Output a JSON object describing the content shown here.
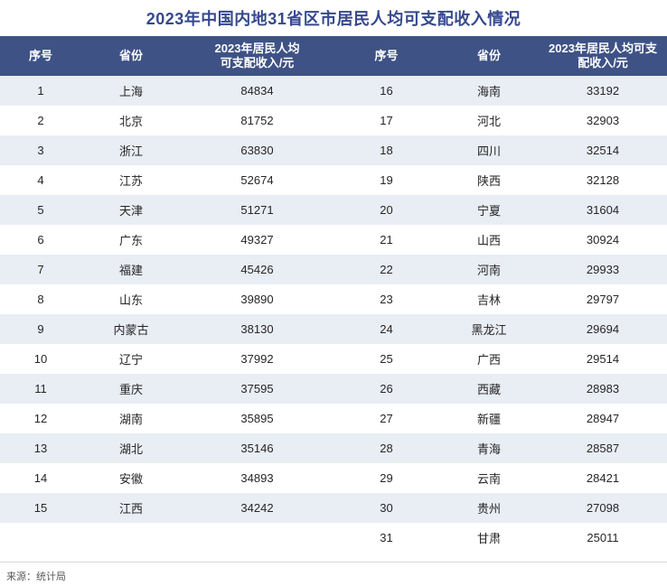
{
  "title": "2023年中国内地31省区市居民人均可支配收入情况",
  "source_note": "来源：统计局",
  "colors": {
    "header_bg": "#3e5285",
    "stripe_row": "#e9edf4",
    "title_text": "#36498c",
    "body_text": "#262626",
    "source_text": "#595959",
    "divider": "#d9d9d9"
  },
  "header": {
    "left": {
      "rank": "序号",
      "province": "省份",
      "income_line1": "2023年居民人均",
      "income_line2": "可支配收入/元"
    },
    "right": {
      "rank": "序号",
      "province": "省份",
      "income_line1": "2023年居民人均可支",
      "income_line2": "配收入/元"
    }
  },
  "layout": {
    "left_rows": 15,
    "right_rows": 16,
    "display_rows": 16
  },
  "chart_data": {
    "type": "table",
    "title": "2023年中国内地31省区市居民人均可支配收入情况",
    "unit": "元",
    "columns": [
      "序号",
      "省份",
      "2023年居民人均可支配收入/元"
    ],
    "rows": [
      {
        "rank": 1,
        "province": "上海",
        "income": 84834
      },
      {
        "rank": 2,
        "province": "北京",
        "income": 81752
      },
      {
        "rank": 3,
        "province": "浙江",
        "income": 63830
      },
      {
        "rank": 4,
        "province": "江苏",
        "income": 52674
      },
      {
        "rank": 5,
        "province": "天津",
        "income": 51271
      },
      {
        "rank": 6,
        "province": "广东",
        "income": 49327
      },
      {
        "rank": 7,
        "province": "福建",
        "income": 45426
      },
      {
        "rank": 8,
        "province": "山东",
        "income": 39890
      },
      {
        "rank": 9,
        "province": "内蒙古",
        "income": 38130
      },
      {
        "rank": 10,
        "province": "辽宁",
        "income": 37992
      },
      {
        "rank": 11,
        "province": "重庆",
        "income": 37595
      },
      {
        "rank": 12,
        "province": "湖南",
        "income": 35895
      },
      {
        "rank": 13,
        "province": "湖北",
        "income": 35146
      },
      {
        "rank": 14,
        "province": "安徽",
        "income": 34893
      },
      {
        "rank": 15,
        "province": "江西",
        "income": 34242
      },
      {
        "rank": 16,
        "province": "海南",
        "income": 33192
      },
      {
        "rank": 17,
        "province": "河北",
        "income": 32903
      },
      {
        "rank": 18,
        "province": "四川",
        "income": 32514
      },
      {
        "rank": 19,
        "province": "陕西",
        "income": 32128
      },
      {
        "rank": 20,
        "province": "宁夏",
        "income": 31604
      },
      {
        "rank": 21,
        "province": "山西",
        "income": 30924
      },
      {
        "rank": 22,
        "province": "河南",
        "income": 29933
      },
      {
        "rank": 23,
        "province": "吉林",
        "income": 29797
      },
      {
        "rank": 24,
        "province": "黑龙江",
        "income": 29694
      },
      {
        "rank": 25,
        "province": "广西",
        "income": 29514
      },
      {
        "rank": 26,
        "province": "西藏",
        "income": 28983
      },
      {
        "rank": 27,
        "province": "新疆",
        "income": 28947
      },
      {
        "rank": 28,
        "province": "青海",
        "income": 28587
      },
      {
        "rank": 29,
        "province": "云南",
        "income": 28421
      },
      {
        "rank": 30,
        "province": "贵州",
        "income": 27098
      },
      {
        "rank": 31,
        "province": "甘肃",
        "income": 25011
      }
    ]
  }
}
